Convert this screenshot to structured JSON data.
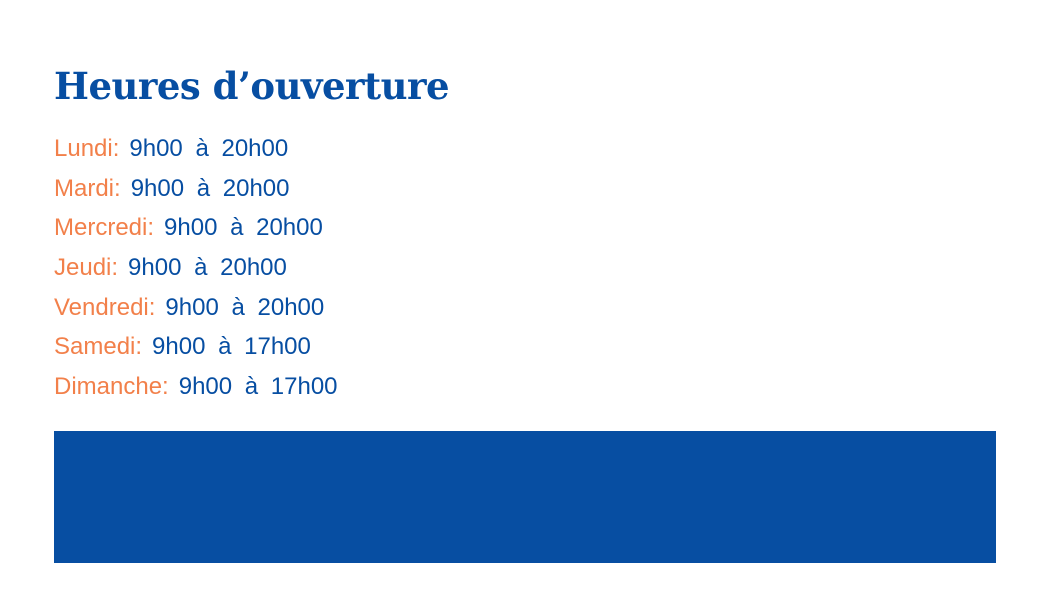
{
  "title": "Heures d’ouverture",
  "hours": [
    {
      "day": "Lundi:",
      "time": "9h00 à 20h00"
    },
    {
      "day": "Mardi:",
      "time": "9h00 à 20h00"
    },
    {
      "day": "Mercredi:",
      "time": "9h00 à 20h00"
    },
    {
      "day": "Jeudi:",
      "time": "9h00 à 20h00"
    },
    {
      "day": "Vendredi:",
      "time": "9h00 à 20h00"
    },
    {
      "day": "Samedi:",
      "time": "9h00 à 17h00"
    },
    {
      "day": "Dimanche:",
      "time": "9h00 à 17h00"
    }
  ],
  "colors": {
    "primary": "#074ea2",
    "accent": "#f2804a"
  }
}
